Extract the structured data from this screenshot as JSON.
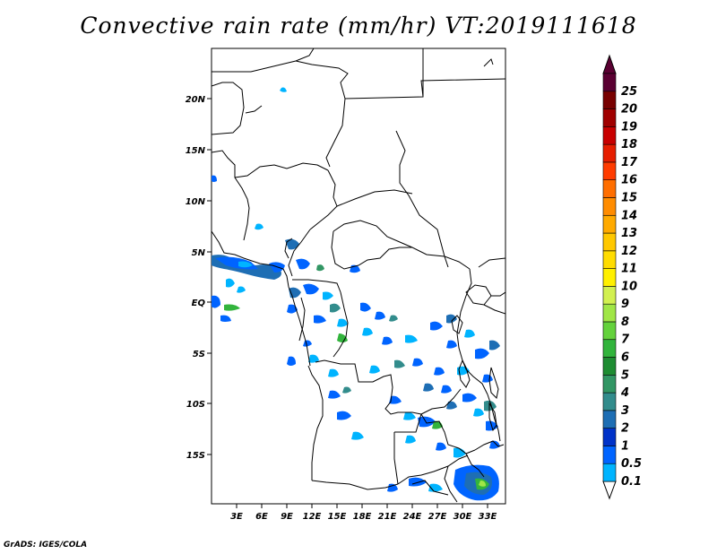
{
  "title": "Convective rain rate (mm/hr) VT:2019111618",
  "credit": "GrADS: IGES/COLA",
  "map": {
    "lat_labels": [
      "20N",
      "15N",
      "10N",
      "5N",
      "EQ",
      "5S",
      "10S",
      "15S"
    ],
    "lon_labels": [
      "3E",
      "6E",
      "9E",
      "12E",
      "15E",
      "18E",
      "21E",
      "24E",
      "27E",
      "30E",
      "33E"
    ]
  },
  "colorbar": {
    "labels": [
      "0.1",
      "0.5",
      "1",
      "2",
      "3",
      "4",
      "5",
      "6",
      "7",
      "8",
      "9",
      "10",
      "11",
      "12",
      "13",
      "14",
      "15",
      "16",
      "17",
      "18",
      "19",
      "20",
      "25"
    ],
    "colors": [
      "#00b4ff",
      "#0064ff",
      "#0032c8",
      "#1e6eb4",
      "#328c8c",
      "#329664",
      "#1e8c32",
      "#32b43c",
      "#64d23c",
      "#a0e646",
      "#d2f050",
      "#fff000",
      "#ffdc00",
      "#ffc800",
      "#ffaa00",
      "#ff8c00",
      "#ff6e00",
      "#ff3c00",
      "#e61e00",
      "#c80000",
      "#a00000",
      "#780000",
      "#5a0032"
    ]
  }
}
